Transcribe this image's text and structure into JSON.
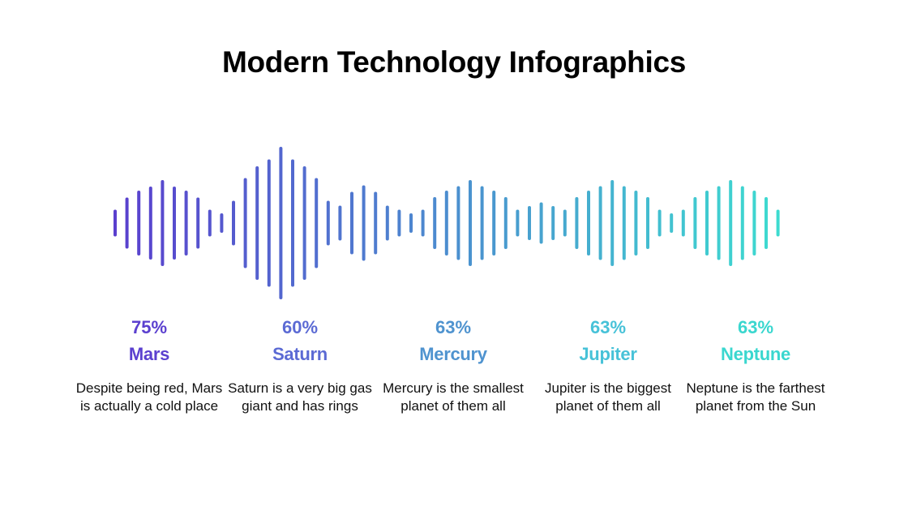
{
  "title": "Modern Technology Infographics",
  "gradient": {
    "start": "#5a3fce",
    "end": "#3ddbd0"
  },
  "items": [
    {
      "percent": "75%",
      "name": "Mars",
      "description": "Despite being red, Mars is actually a cold place",
      "color": "#5b40cf"
    },
    {
      "percent": "60%",
      "name": "Saturn",
      "description": "Saturn is a very big gas giant and has rings",
      "color": "#5b6ad4"
    },
    {
      "percent": "63%",
      "name": "Mercury",
      "description": "Mercury is the smallest planet of them all",
      "color": "#4f93cf"
    },
    {
      "percent": "63%",
      "name": "Jupiter",
      "description": "Jupiter is the biggest planet of them all",
      "color": "#47c2d8"
    },
    {
      "percent": "63%",
      "name": "Neptune",
      "description": "Neptune is the farthest planet from the Sun",
      "color": "#3ad7cf"
    }
  ]
}
